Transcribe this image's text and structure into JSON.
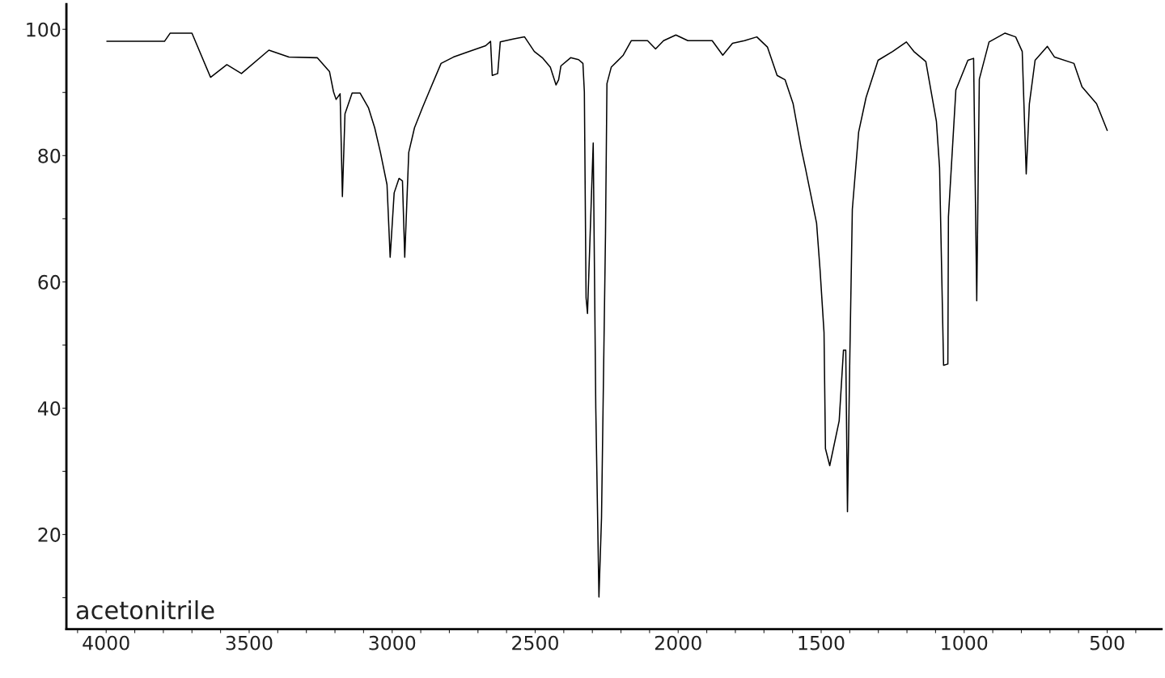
{
  "chart_data": {
    "type": "line",
    "annotations": [
      "acetonitrile"
    ],
    "xlim": [
      4139,
      310
    ],
    "ylim": [
      5,
      104
    ],
    "xticks": [
      {
        "value": 4100,
        "label": null
      },
      4000,
      {
        "value": 3900,
        "label": null
      },
      {
        "value": 3800,
        "label": null
      },
      {
        "value": 3700,
        "label": null
      },
      {
        "value": 3600,
        "label": null
      },
      3500,
      {
        "value": 3400,
        "label": null
      },
      {
        "value": 3300,
        "label": null
      },
      {
        "value": 3200,
        "label": null
      },
      {
        "value": 3100,
        "label": null
      },
      3000,
      {
        "value": 2900,
        "label": null
      },
      {
        "value": 2800,
        "label": null
      },
      {
        "value": 2700,
        "label": null
      },
      {
        "value": 2600,
        "label": null
      },
      2500,
      {
        "value": 2400,
        "label": null
      },
      {
        "value": 2300,
        "label": null
      },
      {
        "value": 2200,
        "label": null
      },
      {
        "value": 2100,
        "label": null
      },
      2000,
      {
        "value": 1900,
        "label": null
      },
      {
        "value": 1800,
        "label": null
      },
      {
        "value": 1700,
        "label": null
      },
      {
        "value": 1600,
        "label": null
      },
      1500,
      {
        "value": 1400,
        "label": null
      },
      {
        "value": 1300,
        "label": null
      },
      {
        "value": 1200,
        "label": null
      },
      {
        "value": 1100,
        "label": null
      },
      1000,
      {
        "value": 900,
        "label": null
      },
      {
        "value": 800,
        "label": null
      },
      {
        "value": 700,
        "label": null
      },
      {
        "value": 600,
        "label": null
      },
      500,
      {
        "value": 400,
        "label": null
      }
    ],
    "yticks": [
      {
        "value": 10,
        "label": null
      },
      20,
      {
        "value": 30,
        "label": null
      },
      40,
      {
        "value": 50,
        "label": null
      },
      60,
      {
        "value": 70,
        "label": null
      },
      80,
      {
        "value": 90,
        "label": null
      },
      100
    ],
    "grid": false,
    "legend": false,
    "marker": "none",
    "line_style": "solid",
    "series": [
      {
        "color": "#000000",
        "x": [
          3997,
          3796,
          3776,
          3700,
          3635,
          3578,
          3527,
          3431,
          3361,
          3262,
          3219,
          3205,
          3196,
          3182,
          3174,
          3165,
          3140,
          3112,
          3083,
          3061,
          3041,
          3018,
          3007,
          2993,
          2976,
          2964,
          2956,
          2942,
          2922,
          2894,
          2871,
          2829,
          2786,
          2730,
          2673,
          2656,
          2650,
          2631,
          2622,
          2574,
          2537,
          2503,
          2475,
          2447,
          2427,
          2418,
          2410,
          2376,
          2348,
          2333,
          2328,
          2322,
          2317,
          2297,
          2288,
          2277,
          2268,
          2254,
          2249,
          2234,
          2192,
          2164,
          2107,
          2079,
          2051,
          2008,
          1966,
          1881,
          1844,
          1810,
          1768,
          1725,
          1688,
          1654,
          1626,
          1598,
          1570,
          1555,
          1516,
          1504,
          1490,
          1485,
          1470,
          1437,
          1422,
          1414,
          1408,
          1400,
          1391,
          1369,
          1343,
          1301,
          1250,
          1202,
          1176,
          1134,
          1097,
          1086,
          1072,
          1057,
          1055,
          1029,
          987,
          967,
          956,
          947,
          913,
          857,
          820,
          797,
          783,
          772,
          752,
          709,
          684,
          616,
          588,
          537,
          500
        ],
        "values": [
          98.1,
          98.1,
          99.4,
          99.4,
          92.4,
          94.4,
          93.0,
          96.7,
          95.6,
          95.5,
          93.3,
          90.1,
          88.9,
          89.8,
          73.5,
          86.6,
          89.9,
          89.9,
          87.6,
          84.4,
          80.5,
          75.4,
          63.9,
          74.1,
          76.4,
          76.0,
          63.9,
          80.5,
          84.4,
          87.6,
          90.1,
          94.6,
          95.6,
          96.5,
          97.4,
          98.1,
          92.7,
          93.0,
          98.0,
          98.5,
          98.8,
          96.5,
          95.5,
          94.0,
          91.2,
          92.0,
          94.2,
          95.5,
          95.2,
          94.6,
          90.1,
          57.5,
          55.0,
          82.0,
          40.0,
          10.1,
          22.6,
          67.7,
          91.4,
          94.0,
          95.9,
          98.2,
          98.2,
          96.9,
          98.2,
          99.1,
          98.2,
          98.2,
          95.9,
          97.8,
          98.2,
          98.8,
          97.2,
          92.7,
          92.0,
          88.2,
          81.2,
          78.0,
          69.3,
          62.0,
          52.0,
          33.6,
          30.9,
          38.0,
          49.2,
          49.2,
          23.6,
          47.5,
          71.5,
          83.7,
          89.2,
          95.1,
          96.5,
          98.0,
          96.5,
          94.9,
          85.4,
          78.1,
          46.8,
          47.0,
          70.3,
          90.4,
          95.1,
          95.4,
          57.0,
          92.1,
          98.0,
          99.4,
          98.8,
          96.5,
          77.1,
          88.2,
          95.1,
          97.3,
          95.6,
          94.6,
          90.9,
          88.2,
          84.0
        ]
      }
    ]
  }
}
